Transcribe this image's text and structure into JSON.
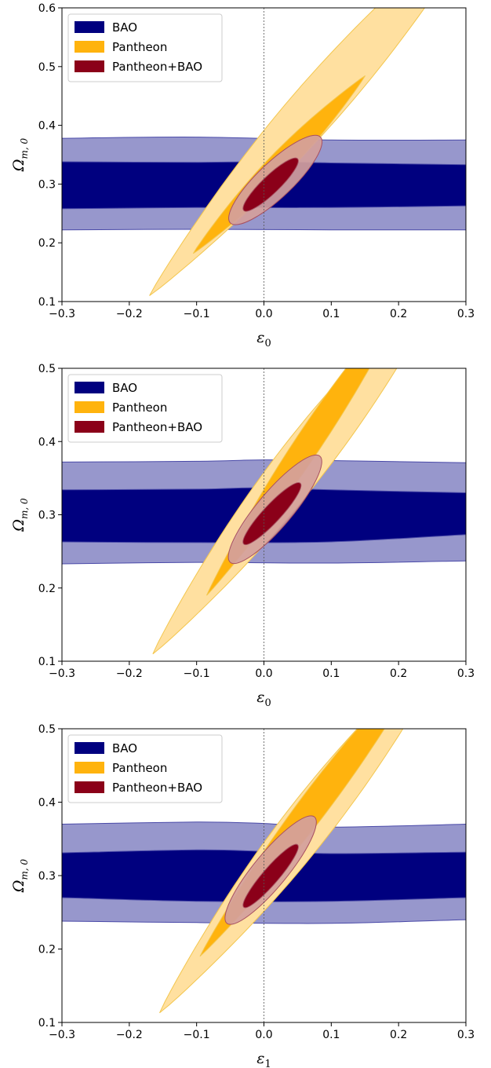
{
  "colors": {
    "bao_inner": "#00007f",
    "bao_outer": "#9797cc",
    "bao_edge": "#4a4aa8",
    "pantheon_inner": "#ffb30d",
    "pantheon_outer": "#ffe0a0",
    "pantheon_edge": "#f3c64d",
    "combined_inner": "#8b0019",
    "combined_outer": "#d4a09c",
    "combined_edge": "#a85060",
    "zero_line": "#555555"
  },
  "chart_data": [
    {
      "type": "contour",
      "xlabel": "ε",
      "xlabel_sub": "0",
      "ylabel": "Ω",
      "ylabel_sub": "m, 0",
      "xlim": [
        -0.3,
        0.3
      ],
      "ylim": [
        0.1,
        0.6
      ],
      "x_ticks": [
        -0.3,
        -0.2,
        -0.1,
        0.0,
        0.1,
        0.2,
        0.3
      ],
      "x_tick_labels": [
        "−0.3",
        "−0.2",
        "−0.1",
        "0.0",
        "0.1",
        "0.2",
        "0.3"
      ],
      "y_ticks": [
        0.1,
        0.2,
        0.3,
        0.4,
        0.5,
        0.6
      ],
      "y_tick_labels": [
        "0.1",
        "0.2",
        "0.3",
        "0.4",
        "0.5",
        "0.6"
      ],
      "vline_x": 0.0,
      "legend_position": "top-left",
      "legend": [
        "BAO",
        "Pantheon",
        "Pantheon+BAO"
      ],
      "series": [
        {
          "name": "BAO",
          "outer": {
            "top": [
              [
                -0.3,
                0.378
              ],
              [
                -0.1,
                0.38
              ],
              [
                0.1,
                0.375
              ],
              [
                0.3,
                0.375
              ]
            ],
            "bottom": [
              [
                -0.3,
                0.222
              ],
              [
                -0.1,
                0.223
              ],
              [
                0.1,
                0.222
              ],
              [
                0.3,
                0.222
              ]
            ]
          },
          "inner": {
            "top": [
              [
                -0.3,
                0.338
              ],
              [
                -0.1,
                0.337
              ],
              [
                0.0,
                0.338
              ],
              [
                0.1,
                0.336
              ],
              [
                0.3,
                0.333
              ]
            ],
            "bottom": [
              [
                -0.3,
                0.258
              ],
              [
                -0.1,
                0.26
              ],
              [
                0.1,
                0.26
              ],
              [
                0.3,
                0.263
              ]
            ]
          }
        },
        {
          "name": "Pantheon",
          "outer": {
            "center_start": [
              -0.17,
              0.11
            ],
            "center_end": [
              0.205,
              0.6
            ],
            "halfwidth": 0.036
          },
          "inner": {
            "center_start": [
              -0.105,
              0.182
            ],
            "center_end": [
              0.15,
              0.484
            ],
            "halfwidth": 0.017
          }
        },
        {
          "name": "Pantheon+BAO",
          "outer": {
            "cx": 0.017,
            "cy": 0.307,
            "p1": [
              0.084,
              0.38
            ],
            "p2": [
              -0.05,
              0.234
            ],
            "halfwidth": 0.026
          },
          "inner": {
            "cx": 0.01,
            "cy": 0.299,
            "p1": [
              0.05,
              0.343
            ],
            "p2": [
              -0.03,
              0.255
            ],
            "halfwidth": 0.013
          }
        }
      ]
    },
    {
      "type": "contour",
      "xlabel": "ε",
      "xlabel_sub": "0",
      "ylabel": "Ω",
      "ylabel_sub": "m, 0",
      "xlim": [
        -0.3,
        0.3
      ],
      "ylim": [
        0.1,
        0.5
      ],
      "x_ticks": [
        -0.3,
        -0.2,
        -0.1,
        0.0,
        0.1,
        0.2,
        0.3
      ],
      "x_tick_labels": [
        "−0.3",
        "−0.2",
        "−0.1",
        "0.0",
        "0.1",
        "0.2",
        "0.3"
      ],
      "y_ticks": [
        0.1,
        0.2,
        0.3,
        0.4,
        0.5
      ],
      "y_tick_labels": [
        "0.1",
        "0.2",
        "0.3",
        "0.4",
        "0.5"
      ],
      "vline_x": 0.0,
      "legend_position": "top-left",
      "legend": [
        "BAO",
        "Pantheon",
        "Pantheon+BAO"
      ],
      "series": [
        {
          "name": "BAO",
          "outer": {
            "top": [
              [
                -0.3,
                0.372
              ],
              [
                -0.1,
                0.373
              ],
              [
                0.0,
                0.375
              ],
              [
                0.1,
                0.374
              ],
              [
                0.3,
                0.371
              ]
            ],
            "bottom": [
              [
                -0.3,
                0.233
              ],
              [
                -0.1,
                0.235
              ],
              [
                0.1,
                0.234
              ],
              [
                0.3,
                0.237
              ]
            ]
          },
          "inner": {
            "top": [
              [
                -0.3,
                0.334
              ],
              [
                -0.1,
                0.335
              ],
              [
                0.0,
                0.337
              ],
              [
                0.1,
                0.334
              ],
              [
                0.3,
                0.33
              ]
            ],
            "bottom": [
              [
                -0.3,
                0.263
              ],
              [
                -0.1,
                0.262
              ],
              [
                0.1,
                0.263
              ],
              [
                0.3,
                0.273
              ]
            ]
          }
        },
        {
          "name": "Pantheon",
          "outer": {
            "center_start": [
              -0.165,
              0.11
            ],
            "center_end": [
              0.165,
              0.5
            ],
            "halfwidth": 0.036
          },
          "inner": {
            "center_start": [
              -0.085,
              0.19
            ],
            "center_end": [
              0.14,
              0.5
            ],
            "halfwidth": 0.019
          }
        },
        {
          "name": "Pantheon+BAO",
          "outer": {
            "cx": 0.015,
            "cy": 0.306,
            "p1": [
              0.083,
              0.38
            ],
            "p2": [
              -0.05,
              0.235
            ],
            "halfwidth": 0.026
          },
          "inner": {
            "cx": 0.01,
            "cy": 0.3,
            "p1": [
              0.054,
              0.343
            ],
            "p2": [
              -0.03,
              0.26
            ],
            "halfwidth": 0.013
          }
        }
      ]
    },
    {
      "type": "contour",
      "xlabel": "ε",
      "xlabel_sub": "1",
      "ylabel": "Ω",
      "ylabel_sub": "m, 0",
      "xlim": [
        -0.3,
        0.3
      ],
      "ylim": [
        0.1,
        0.5
      ],
      "x_ticks": [
        -0.3,
        -0.2,
        -0.1,
        0.0,
        0.1,
        0.2,
        0.3
      ],
      "x_tick_labels": [
        "−0.3",
        "−0.2",
        "−0.1",
        "0.0",
        "0.1",
        "0.2",
        "0.3"
      ],
      "y_ticks": [
        0.1,
        0.2,
        0.3,
        0.4,
        0.5
      ],
      "y_tick_labels": [
        "0.1",
        "0.2",
        "0.3",
        "0.4",
        "0.5"
      ],
      "vline_x": 0.0,
      "legend_position": "top-left",
      "legend": [
        "BAO",
        "Pantheon",
        "Pantheon+BAO"
      ],
      "series": [
        {
          "name": "BAO",
          "outer": {
            "top": [
              [
                -0.3,
                0.37
              ],
              [
                -0.1,
                0.373
              ],
              [
                0.0,
                0.371
              ],
              [
                0.1,
                0.366
              ],
              [
                0.3,
                0.37
              ]
            ],
            "bottom": [
              [
                -0.3,
                0.238
              ],
              [
                -0.1,
                0.236
              ],
              [
                0.1,
                0.235
              ],
              [
                0.3,
                0.24
              ]
            ]
          },
          "inner": {
            "top": [
              [
                -0.3,
                0.331
              ],
              [
                -0.1,
                0.335
              ],
              [
                0.0,
                0.333
              ],
              [
                0.1,
                0.33
              ],
              [
                0.3,
                0.332
              ]
            ],
            "bottom": [
              [
                -0.3,
                0.27
              ],
              [
                -0.1,
                0.265
              ],
              [
                0.1,
                0.265
              ],
              [
                0.3,
                0.27
              ]
            ]
          }
        },
        {
          "name": "Pantheon",
          "outer": {
            "center_start": [
              -0.155,
              0.113
            ],
            "center_end": [
              0.175,
              0.5
            ],
            "halfwidth": 0.035
          },
          "inner": {
            "center_start": [
              -0.095,
              0.19
            ],
            "center_end": [
              0.16,
              0.5
            ],
            "halfwidth": 0.021
          }
        },
        {
          "name": "Pantheon+BAO",
          "outer": {
            "cx": 0.012,
            "cy": 0.307,
            "p1": [
              0.075,
              0.38
            ],
            "p2": [
              -0.055,
              0.235
            ],
            "halfwidth": 0.025
          },
          "inner": {
            "cx": 0.01,
            "cy": 0.3,
            "p1": [
              0.05,
              0.342
            ],
            "p2": [
              -0.03,
              0.257
            ],
            "halfwidth": 0.012
          }
        }
      ]
    }
  ]
}
